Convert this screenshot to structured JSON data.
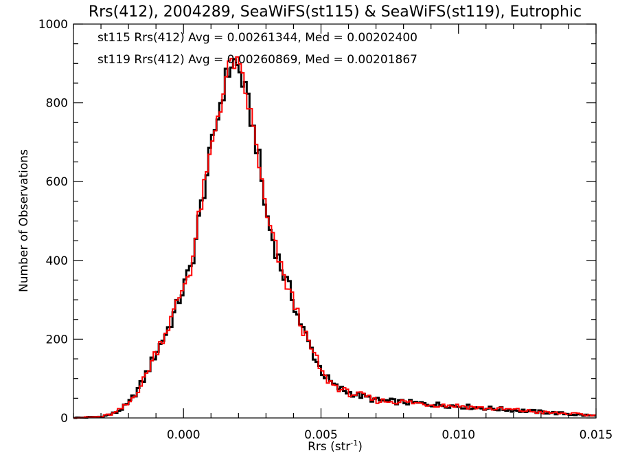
{
  "chart_data": {
    "type": "histogram-step",
    "title": "Rrs(412), 2004289, SeaWiFS(st115) & SeaWiFS(st119), Eutrophic",
    "xlabel": "Rrs (str",
    "xlabel_sup": "-1",
    "xlabel_close": ")",
    "ylabel": "Number of Observations",
    "xlim": [
      -0.004,
      0.015
    ],
    "ylim": [
      0,
      1000
    ],
    "xticks": [
      0.0,
      0.005,
      0.01,
      0.015
    ],
    "xtick_labels": [
      "0.000",
      "0.005",
      "0.010",
      "0.015"
    ],
    "yticks": [
      0,
      200,
      400,
      600,
      800,
      1000
    ],
    "ytick_labels": [
      "0",
      "200",
      "400",
      "600",
      "800",
      "1000"
    ],
    "grid": false,
    "legend_placement": "top-left",
    "series": [
      {
        "name": "st115",
        "color": "#000000",
        "annotation": "st115 Rrs(412) Avg = 0.00261344, Med = 0.00202400",
        "bin_width": 0.0001,
        "points": [
          [
            -0.004,
            0
          ],
          [
            -0.003,
            3
          ],
          [
            -0.0025,
            12
          ],
          [
            -0.002,
            35
          ],
          [
            -0.0015,
            90
          ],
          [
            -0.001,
            165
          ],
          [
            -0.0005,
            235
          ],
          [
            0.0,
            330
          ],
          [
            0.0003,
            390
          ],
          [
            0.0006,
            520
          ],
          [
            0.0009,
            640
          ],
          [
            0.0012,
            750
          ],
          [
            0.0015,
            850
          ],
          [
            0.0018,
            910
          ],
          [
            0.0021,
            870
          ],
          [
            0.0024,
            780
          ],
          [
            0.0027,
            680
          ],
          [
            0.003,
            520
          ],
          [
            0.0033,
            440
          ],
          [
            0.0036,
            370
          ],
          [
            0.0039,
            320
          ],
          [
            0.0042,
            250
          ],
          [
            0.0045,
            200
          ],
          [
            0.0048,
            150
          ],
          [
            0.0051,
            110
          ],
          [
            0.0055,
            80
          ],
          [
            0.006,
            65
          ],
          [
            0.0065,
            55
          ],
          [
            0.007,
            45
          ],
          [
            0.008,
            40
          ],
          [
            0.009,
            35
          ],
          [
            0.01,
            30
          ],
          [
            0.011,
            25
          ],
          [
            0.012,
            20
          ],
          [
            0.013,
            15
          ],
          [
            0.014,
            10
          ],
          [
            0.015,
            5
          ]
        ]
      },
      {
        "name": "st119",
        "color": "#ff0000",
        "annotation": "st119 Rrs(412) Avg = 0.00260869, Med = 0.00201867",
        "bin_width": 0.0001,
        "points": [
          [
            -0.004,
            0
          ],
          [
            -0.003,
            3
          ],
          [
            -0.0025,
            12
          ],
          [
            -0.002,
            36
          ],
          [
            -0.0015,
            88
          ],
          [
            -0.001,
            168
          ],
          [
            -0.0005,
            240
          ],
          [
            0.0,
            335
          ],
          [
            0.0003,
            388
          ],
          [
            0.0006,
            525
          ],
          [
            0.0009,
            635
          ],
          [
            0.0012,
            755
          ],
          [
            0.0015,
            845
          ],
          [
            0.0018,
            915
          ],
          [
            0.0021,
            865
          ],
          [
            0.0024,
            785
          ],
          [
            0.0027,
            675
          ],
          [
            0.003,
            515
          ],
          [
            0.0033,
            445
          ],
          [
            0.0036,
            365
          ],
          [
            0.0039,
            315
          ],
          [
            0.0042,
            255
          ],
          [
            0.0045,
            195
          ],
          [
            0.0048,
            155
          ],
          [
            0.0051,
            105
          ],
          [
            0.0055,
            82
          ],
          [
            0.006,
            63
          ],
          [
            0.0065,
            57
          ],
          [
            0.007,
            44
          ],
          [
            0.008,
            41
          ],
          [
            0.009,
            34
          ],
          [
            0.01,
            31
          ],
          [
            0.011,
            24
          ],
          [
            0.012,
            21
          ],
          [
            0.013,
            14
          ],
          [
            0.014,
            11
          ],
          [
            0.015,
            6
          ]
        ]
      }
    ]
  }
}
